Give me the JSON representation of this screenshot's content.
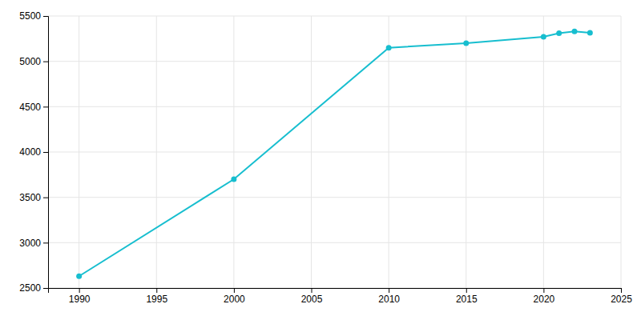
{
  "chart_data": {
    "type": "line",
    "x": [
      1990,
      2000,
      2010,
      2015,
      2020,
      2021,
      2022,
      2023
    ],
    "values": [
      2630,
      3700,
      5150,
      5200,
      5270,
      5310,
      5330,
      5315
    ],
    "color": "#17becf",
    "marker": "circle",
    "xlim": [
      1988,
      2025
    ],
    "ylim": [
      2500,
      5500
    ],
    "xticks": [
      1990,
      1995,
      2000,
      2005,
      2010,
      2015,
      2020,
      2025
    ],
    "yticks": [
      2500,
      3000,
      3500,
      4000,
      4500,
      5000,
      5500
    ],
    "grid": true
  }
}
